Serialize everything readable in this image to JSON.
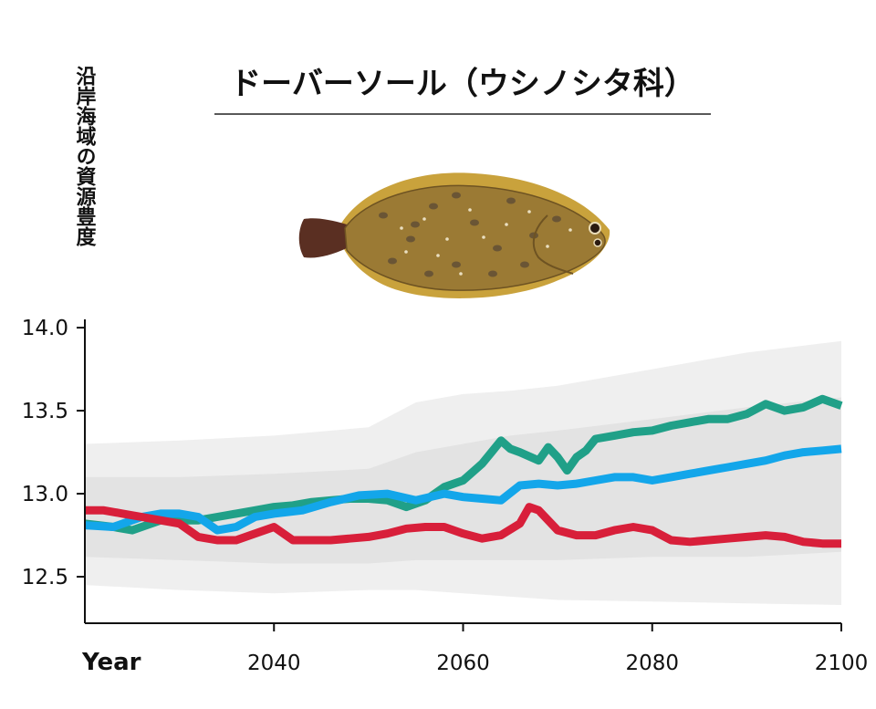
{
  "chart_data": {
    "type": "line",
    "title": "ドーバーソール（ウシノシタ科）",
    "ylabel": "沿岸海域の資源豊度",
    "xlabel": "Year",
    "xlim": [
      2020,
      2100
    ],
    "ylim": [
      12.22,
      14.05
    ],
    "x_ticks": [
      "2040",
      "2060",
      "2080",
      "2100"
    ],
    "y_ticks": [
      "14.0",
      "13.5",
      "13.0",
      "12.5"
    ],
    "grid": false,
    "colors": {
      "green": "#20a088",
      "blue": "#13a6ea",
      "red": "#d81f3a",
      "band_outer": "#ececec",
      "band_inner": "#e0e0e0"
    },
    "bands": [
      {
        "x": [
          2020,
          2030,
          2040,
          2050,
          2055,
          2060,
          2065,
          2070,
          2080,
          2090,
          2100
        ],
        "upper": [
          13.3,
          13.32,
          13.35,
          13.4,
          13.55,
          13.6,
          13.62,
          13.65,
          13.75,
          13.85,
          13.92
        ],
        "lower": [
          12.45,
          12.42,
          12.4,
          12.42,
          12.42,
          12.4,
          12.38,
          12.36,
          12.35,
          12.34,
          12.33
        ]
      },
      {
        "x": [
          2020,
          2030,
          2040,
          2050,
          2055,
          2060,
          2065,
          2070,
          2080,
          2090,
          2100
        ],
        "upper": [
          13.1,
          13.1,
          13.12,
          13.15,
          13.25,
          13.3,
          13.35,
          13.38,
          13.45,
          13.52,
          13.58
        ],
        "lower": [
          12.62,
          12.6,
          12.58,
          12.58,
          12.6,
          12.6,
          12.6,
          12.6,
          12.62,
          12.62,
          12.65
        ]
      }
    ],
    "series": [
      {
        "color": "green",
        "x": [
          2020,
          2023,
          2025,
          2028,
          2030,
          2032,
          2034,
          2036,
          2038,
          2040,
          2042,
          2044,
          2046,
          2048,
          2050,
          2052,
          2054,
          2056,
          2058,
          2060,
          2062,
          2063,
          2064,
          2065,
          2066,
          2068,
          2069,
          2070,
          2071,
          2072,
          2073,
          2074,
          2076,
          2078,
          2080,
          2082,
          2084,
          2086,
          2088,
          2090,
          2092,
          2094,
          2096,
          2098,
          2100
        ],
        "y": [
          12.82,
          12.8,
          12.78,
          12.84,
          12.84,
          12.84,
          12.86,
          12.88,
          12.9,
          12.92,
          12.93,
          12.95,
          12.96,
          12.97,
          12.97,
          12.96,
          12.92,
          12.96,
          13.04,
          13.08,
          13.18,
          13.25,
          13.32,
          13.27,
          13.25,
          13.2,
          13.28,
          13.22,
          13.14,
          13.22,
          13.26,
          13.33,
          13.35,
          13.37,
          13.38,
          13.41,
          13.43,
          13.45,
          13.45,
          13.48,
          13.54,
          13.5,
          13.52,
          13.57,
          13.53
        ]
      },
      {
        "color": "blue",
        "x": [
          2020,
          2023,
          2026,
          2028,
          2030,
          2032,
          2034,
          2036,
          2038,
          2040,
          2043,
          2046,
          2049,
          2052,
          2055,
          2058,
          2060,
          2062,
          2064,
          2066,
          2068,
          2070,
          2072,
          2074,
          2076,
          2078,
          2080,
          2082,
          2084,
          2086,
          2088,
          2090,
          2092,
          2094,
          2096,
          2098,
          2100
        ],
        "y": [
          12.81,
          12.8,
          12.86,
          12.88,
          12.88,
          12.86,
          12.78,
          12.8,
          12.86,
          12.88,
          12.9,
          12.95,
          12.99,
          13.0,
          12.96,
          13.0,
          12.98,
          12.97,
          12.96,
          13.05,
          13.06,
          13.05,
          13.06,
          13.08,
          13.1,
          13.1,
          13.08,
          13.1,
          13.12,
          13.14,
          13.16,
          13.18,
          13.2,
          13.23,
          13.25,
          13.26,
          13.27
        ]
      },
      {
        "color": "red",
        "x": [
          2020,
          2022,
          2024,
          2026,
          2028,
          2030,
          2032,
          2034,
          2036,
          2038,
          2040,
          2042,
          2044,
          2046,
          2048,
          2050,
          2052,
          2054,
          2056,
          2058,
          2060,
          2062,
          2064,
          2066,
          2067,
          2068,
          2070,
          2072,
          2074,
          2076,
          2078,
          2080,
          2082,
          2084,
          2086,
          2088,
          2090,
          2092,
          2094,
          2096,
          2098,
          2100
        ],
        "y": [
          12.9,
          12.9,
          12.88,
          12.86,
          12.84,
          12.82,
          12.74,
          12.72,
          12.72,
          12.76,
          12.8,
          12.72,
          12.72,
          12.72,
          12.73,
          12.74,
          12.76,
          12.79,
          12.8,
          12.8,
          12.76,
          12.73,
          12.75,
          12.82,
          12.92,
          12.9,
          12.78,
          12.75,
          12.75,
          12.78,
          12.8,
          12.78,
          12.72,
          12.71,
          12.72,
          12.73,
          12.74,
          12.75,
          12.74,
          12.71,
          12.7,
          12.7
        ]
      }
    ]
  },
  "illustration": {
    "subject": "dover-sole-fish",
    "colors": {
      "body": "#9b7a34",
      "body_dark": "#6e5322",
      "fin": "#c9a23c",
      "tail": "#5a2f22",
      "spot": "#5a4a35",
      "speck": "#f3ead0"
    }
  }
}
